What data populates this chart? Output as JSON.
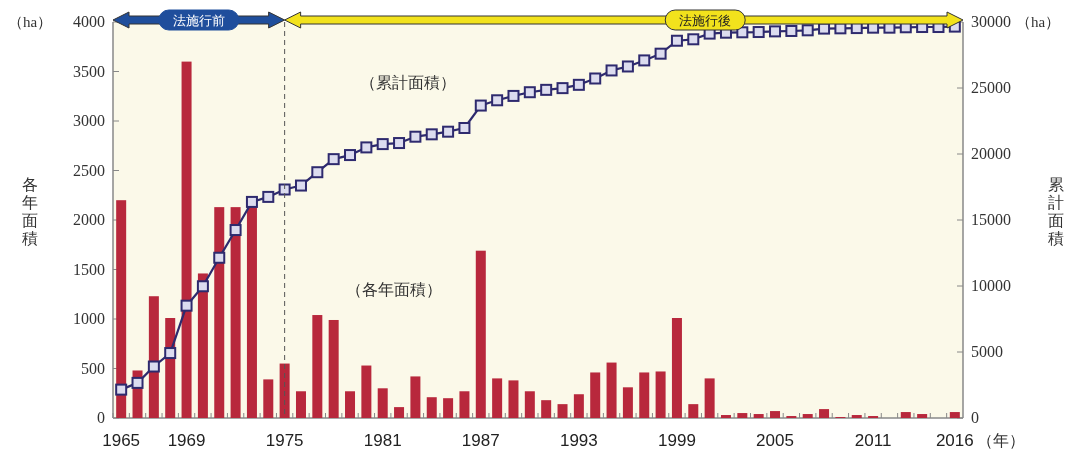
{
  "chart_data": {
    "type": "bar",
    "categories": [
      "1965",
      null,
      null,
      null,
      "1969",
      null,
      null,
      null,
      null,
      null,
      "1975",
      null,
      null,
      null,
      null,
      null,
      "1981",
      null,
      null,
      null,
      null,
      null,
      "1987",
      null,
      null,
      null,
      null,
      null,
      "1993",
      null,
      null,
      null,
      null,
      null,
      "1999",
      null,
      null,
      null,
      null,
      null,
      "2005",
      null,
      null,
      null,
      null,
      null,
      "2011",
      null,
      null,
      null,
      null,
      "2016"
    ],
    "series": [
      {
        "name": "（各年面積）",
        "color": "#b8283c",
        "values": [
          2200,
          480,
          1230,
          1010,
          3600,
          1460,
          2130,
          2130,
          2130,
          390,
          550,
          270,
          1040,
          990,
          270,
          530,
          300,
          110,
          420,
          210,
          200,
          270,
          1690,
          400,
          380,
          270,
          180,
          140,
          240,
          460,
          560,
          310,
          460,
          470,
          1010,
          140,
          400,
          30,
          50,
          40,
          70,
          20,
          40,
          90,
          10,
          30,
          20,
          0,
          60,
          40,
          0,
          60
        ]
      },
      {
        "name": "（累計面積）",
        "type": "line",
        "axis": "y2",
        "color": "#2e2a6e",
        "marker": "square",
        "values": [
          2150,
          2660,
          3900,
          4920,
          8510,
          9980,
          12140,
          14240,
          16370,
          16750,
          17310,
          17610,
          18620,
          19610,
          19920,
          20500,
          20750,
          20830,
          21310,
          21490,
          21690,
          21970,
          23670,
          24070,
          24400,
          24680,
          24860,
          24990,
          25240,
          25720,
          26330,
          26630,
          27090,
          27600,
          28580,
          28690,
          29120,
          29190,
          29220,
          29240,
          29290,
          29320,
          29370,
          29500,
          29520,
          29540,
          29570,
          29570,
          29600,
          29620,
          29620,
          29650
        ]
      }
    ],
    "ylim": [
      0,
      4000
    ],
    "yticks": [
      0,
      500,
      1000,
      1500,
      2000,
      2500,
      3000,
      3500,
      4000
    ],
    "y2lim": [
      0,
      30000
    ],
    "y2ticks": [
      0,
      5000,
      10000,
      15000,
      20000,
      25000,
      30000
    ],
    "ylabel": "各年面積",
    "y2label": "累計面積",
    "xlabel": "（年）",
    "annotations": [
      "（ha）",
      "（ha）",
      "法施行前",
      "法施行後"
    ],
    "ref_lines": [
      {
        "axis": "x",
        "value": "1975",
        "line_style": "dashed",
        "color": "#555555"
      }
    ],
    "legend": false,
    "grid": false
  }
}
